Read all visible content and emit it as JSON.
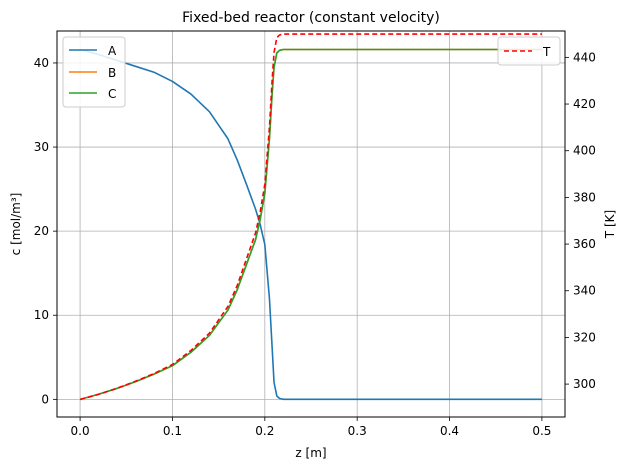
{
  "chart_data": {
    "type": "line",
    "title": "Fixed-bed reactor (constant velocity)",
    "xlabel": "z [m]",
    "ylabel_left": "c [mol/m³]",
    "ylabel_right": "T [K]",
    "xlim": [
      -0.025,
      0.525
    ],
    "ylim_left": [
      -2.1,
      43.8
    ],
    "ylim_right": [
      285.9,
      451.3
    ],
    "x_ticks": [
      0.0,
      0.1,
      0.2,
      0.3,
      0.4,
      0.5
    ],
    "y_ticks_left": [
      0,
      10,
      20,
      30,
      40
    ],
    "y_ticks_right": [
      300,
      320,
      340,
      360,
      380,
      400,
      420,
      440
    ],
    "x_tick_labels": [
      "0.0",
      "0.1",
      "0.2",
      "0.3",
      "0.4",
      "0.5"
    ],
    "y_tick_labels_left": [
      "0",
      "10",
      "20",
      "30",
      "40"
    ],
    "y_tick_labels_right": [
      "300",
      "320",
      "340",
      "360",
      "380",
      "400",
      "420",
      "440"
    ],
    "grid": true,
    "legend_left": {
      "placement": "top-left",
      "entries": [
        "A",
        "B",
        "C"
      ]
    },
    "legend_right": {
      "placement": "top-right",
      "entries": [
        "T"
      ]
    },
    "series": [
      {
        "name": "A",
        "axis": "left",
        "color": "#1f77b4",
        "dash": "solid",
        "x": [
          0.0,
          0.02,
          0.04,
          0.06,
          0.08,
          0.1,
          0.12,
          0.14,
          0.16,
          0.17,
          0.18,
          0.19,
          0.195,
          0.2,
          0.205,
          0.208,
          0.21,
          0.213,
          0.216,
          0.22,
          0.25,
          0.3,
          0.35,
          0.4,
          0.45,
          0.5
        ],
        "y": [
          41.6,
          41.0,
          40.3,
          39.6,
          38.9,
          37.8,
          36.3,
          34.2,
          31.0,
          28.5,
          25.6,
          22.6,
          20.8,
          18.4,
          12.0,
          6.0,
          2.0,
          0.4,
          0.1,
          0.0,
          0.0,
          0.0,
          0.0,
          0.0,
          0.0,
          0.0
        ]
      },
      {
        "name": "B",
        "axis": "left",
        "color": "#ff7f0e",
        "dash": "solid",
        "x": [
          0.0,
          0.02,
          0.04,
          0.06,
          0.08,
          0.1,
          0.12,
          0.14,
          0.16,
          0.17,
          0.18,
          0.19,
          0.195,
          0.2,
          0.205,
          0.208,
          0.21,
          0.213,
          0.216,
          0.22,
          0.25,
          0.3,
          0.35,
          0.4,
          0.45,
          0.5
        ],
        "y": [
          0.0,
          0.6,
          1.3,
          2.1,
          3.0,
          4.0,
          5.6,
          7.6,
          10.6,
          13.0,
          16.0,
          19.0,
          21.4,
          24.5,
          31.0,
          36.5,
          39.5,
          41.2,
          41.5,
          41.6,
          41.6,
          41.6,
          41.6,
          41.6,
          41.6,
          41.6
        ]
      },
      {
        "name": "C",
        "axis": "left",
        "color": "#2ca02c",
        "dash": "solid",
        "x": [
          0.0,
          0.02,
          0.04,
          0.06,
          0.08,
          0.1,
          0.12,
          0.14,
          0.16,
          0.17,
          0.18,
          0.19,
          0.195,
          0.2,
          0.205,
          0.208,
          0.21,
          0.213,
          0.216,
          0.22,
          0.25,
          0.3,
          0.35,
          0.4,
          0.45,
          0.5
        ],
        "y": [
          0.0,
          0.6,
          1.3,
          2.1,
          3.0,
          4.0,
          5.6,
          7.6,
          10.6,
          13.0,
          16.0,
          19.0,
          21.4,
          24.5,
          31.0,
          36.5,
          39.5,
          41.2,
          41.5,
          41.6,
          41.6,
          41.6,
          41.6,
          41.6,
          41.6,
          41.6
        ]
      },
      {
        "name": "T",
        "axis": "right",
        "color": "#ff0000",
        "dash": "dashed",
        "x": [
          0.0,
          0.02,
          0.04,
          0.06,
          0.08,
          0.1,
          0.12,
          0.14,
          0.16,
          0.17,
          0.18,
          0.19,
          0.195,
          0.2,
          0.205,
          0.208,
          0.21,
          0.213,
          0.216,
          0.22,
          0.25,
          0.3,
          0.35,
          0.4,
          0.45,
          0.5
        ],
        "y": [
          293.4,
          295.6,
          298.2,
          301.2,
          304.5,
          308.4,
          314.4,
          321.8,
          333.2,
          342.1,
          353.5,
          364.8,
          373.8,
          385.6,
          410.0,
          430.8,
          442.1,
          448.5,
          449.6,
          450.0,
          450.0,
          450.0,
          450.0,
          450.0,
          450.0,
          450.0
        ]
      }
    ]
  }
}
